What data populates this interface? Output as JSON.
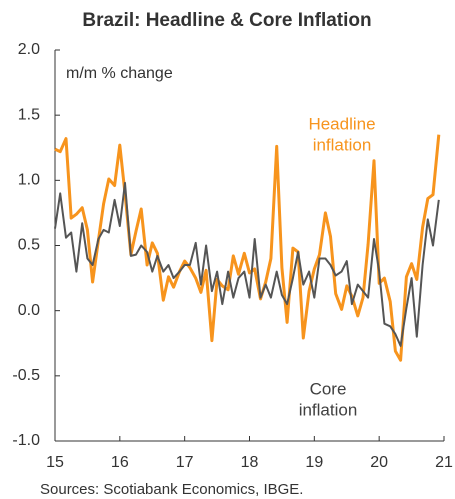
{
  "chart_data": {
    "type": "line",
    "title": "Brazil: Headline & Core Inflation",
    "y_label": "m/m % change",
    "source": "Sources: Scotiabank Economics, IBGE.",
    "annotations": [
      {
        "lines": [
          "Headline",
          "inflation"
        ],
        "color": "#f7941d"
      },
      {
        "lines": [
          "Core",
          "inflation"
        ],
        "color": "#404040"
      }
    ],
    "x": [
      15,
      15.08,
      15.17,
      15.25,
      15.33,
      15.42,
      15.5,
      15.58,
      15.67,
      15.75,
      15.83,
      15.92,
      16,
      16.08,
      16.17,
      16.25,
      16.33,
      16.42,
      16.5,
      16.58,
      16.67,
      16.75,
      16.83,
      16.92,
      17,
      17.08,
      17.17,
      17.25,
      17.33,
      17.42,
      17.5,
      17.58,
      17.67,
      17.75,
      17.83,
      17.92,
      18,
      18.08,
      18.17,
      18.25,
      18.33,
      18.42,
      18.5,
      18.58,
      18.67,
      18.75,
      18.83,
      18.92,
      19,
      19.08,
      19.17,
      19.25,
      19.33,
      19.42,
      19.5,
      19.58,
      19.67,
      19.75,
      19.83,
      19.92,
      20,
      20.08,
      20.17,
      20.25,
      20.33,
      20.42,
      20.5,
      20.58,
      20.67,
      20.75,
      20.83,
      20.92
    ],
    "series": [
      {
        "name": "Headline inflation",
        "color": "#f7941d",
        "width": 3,
        "values": [
          1.24,
          1.22,
          1.32,
          0.71,
          0.74,
          0.79,
          0.62,
          0.22,
          0.54,
          0.82,
          1.01,
          0.96,
          1.27,
          0.9,
          0.43,
          0.61,
          0.78,
          0.35,
          0.52,
          0.44,
          0.08,
          0.26,
          0.18,
          0.3,
          0.38,
          0.33,
          0.25,
          0.14,
          0.31,
          -0.23,
          0.24,
          0.19,
          0.16,
          0.42,
          0.28,
          0.44,
          0.29,
          0.32,
          0.09,
          0.22,
          0.4,
          1.26,
          0.33,
          -0.09,
          0.48,
          0.45,
          -0.21,
          0.15,
          0.32,
          0.43,
          0.75,
          0.57,
          0.13,
          0.01,
          0.19,
          0.11,
          -0.04,
          0.1,
          0.51,
          1.15,
          0.21,
          0.25,
          0.07,
          -0.31,
          -0.38,
          0.26,
          0.36,
          0.24,
          0.64,
          0.86,
          0.89,
          1.35
        ]
      },
      {
        "name": "Core inflation",
        "color": "#555555",
        "width": 2,
        "values": [
          0.63,
          0.9,
          0.56,
          0.6,
          0.3,
          0.67,
          0.4,
          0.35,
          0.55,
          0.62,
          0.6,
          0.85,
          0.65,
          0.98,
          0.42,
          0.43,
          0.5,
          0.45,
          0.3,
          0.42,
          0.3,
          0.35,
          0.25,
          0.3,
          0.35,
          0.35,
          0.52,
          0.2,
          0.5,
          0.15,
          0.3,
          0.05,
          0.3,
          0.1,
          0.25,
          0.3,
          0.1,
          0.55,
          0.1,
          0.2,
          0.1,
          0.3,
          0.12,
          0.05,
          0.25,
          0.45,
          0.2,
          0.3,
          0.1,
          0.4,
          0.4,
          0.35,
          0.27,
          0.3,
          0.38,
          0.05,
          0.2,
          0.15,
          0.1,
          0.55,
          0.3,
          -0.1,
          -0.12,
          -0.18,
          -0.27,
          0.02,
          0.25,
          -0.2,
          0.35,
          0.7,
          0.5,
          0.85
        ]
      }
    ],
    "xlim": [
      15,
      21
    ],
    "xticks": [
      15,
      16,
      17,
      18,
      19,
      20,
      21
    ],
    "ylim": [
      -1,
      2
    ],
    "yticks": [
      {
        "value": -1,
        "label": "-1.0"
      },
      -0.5,
      {
        "value": 0,
        "label": "0.0"
      },
      0.5,
      {
        "value": 1,
        "label": "1.0"
      },
      1.5,
      {
        "value": 2,
        "label": "2.0"
      }
    ]
  }
}
